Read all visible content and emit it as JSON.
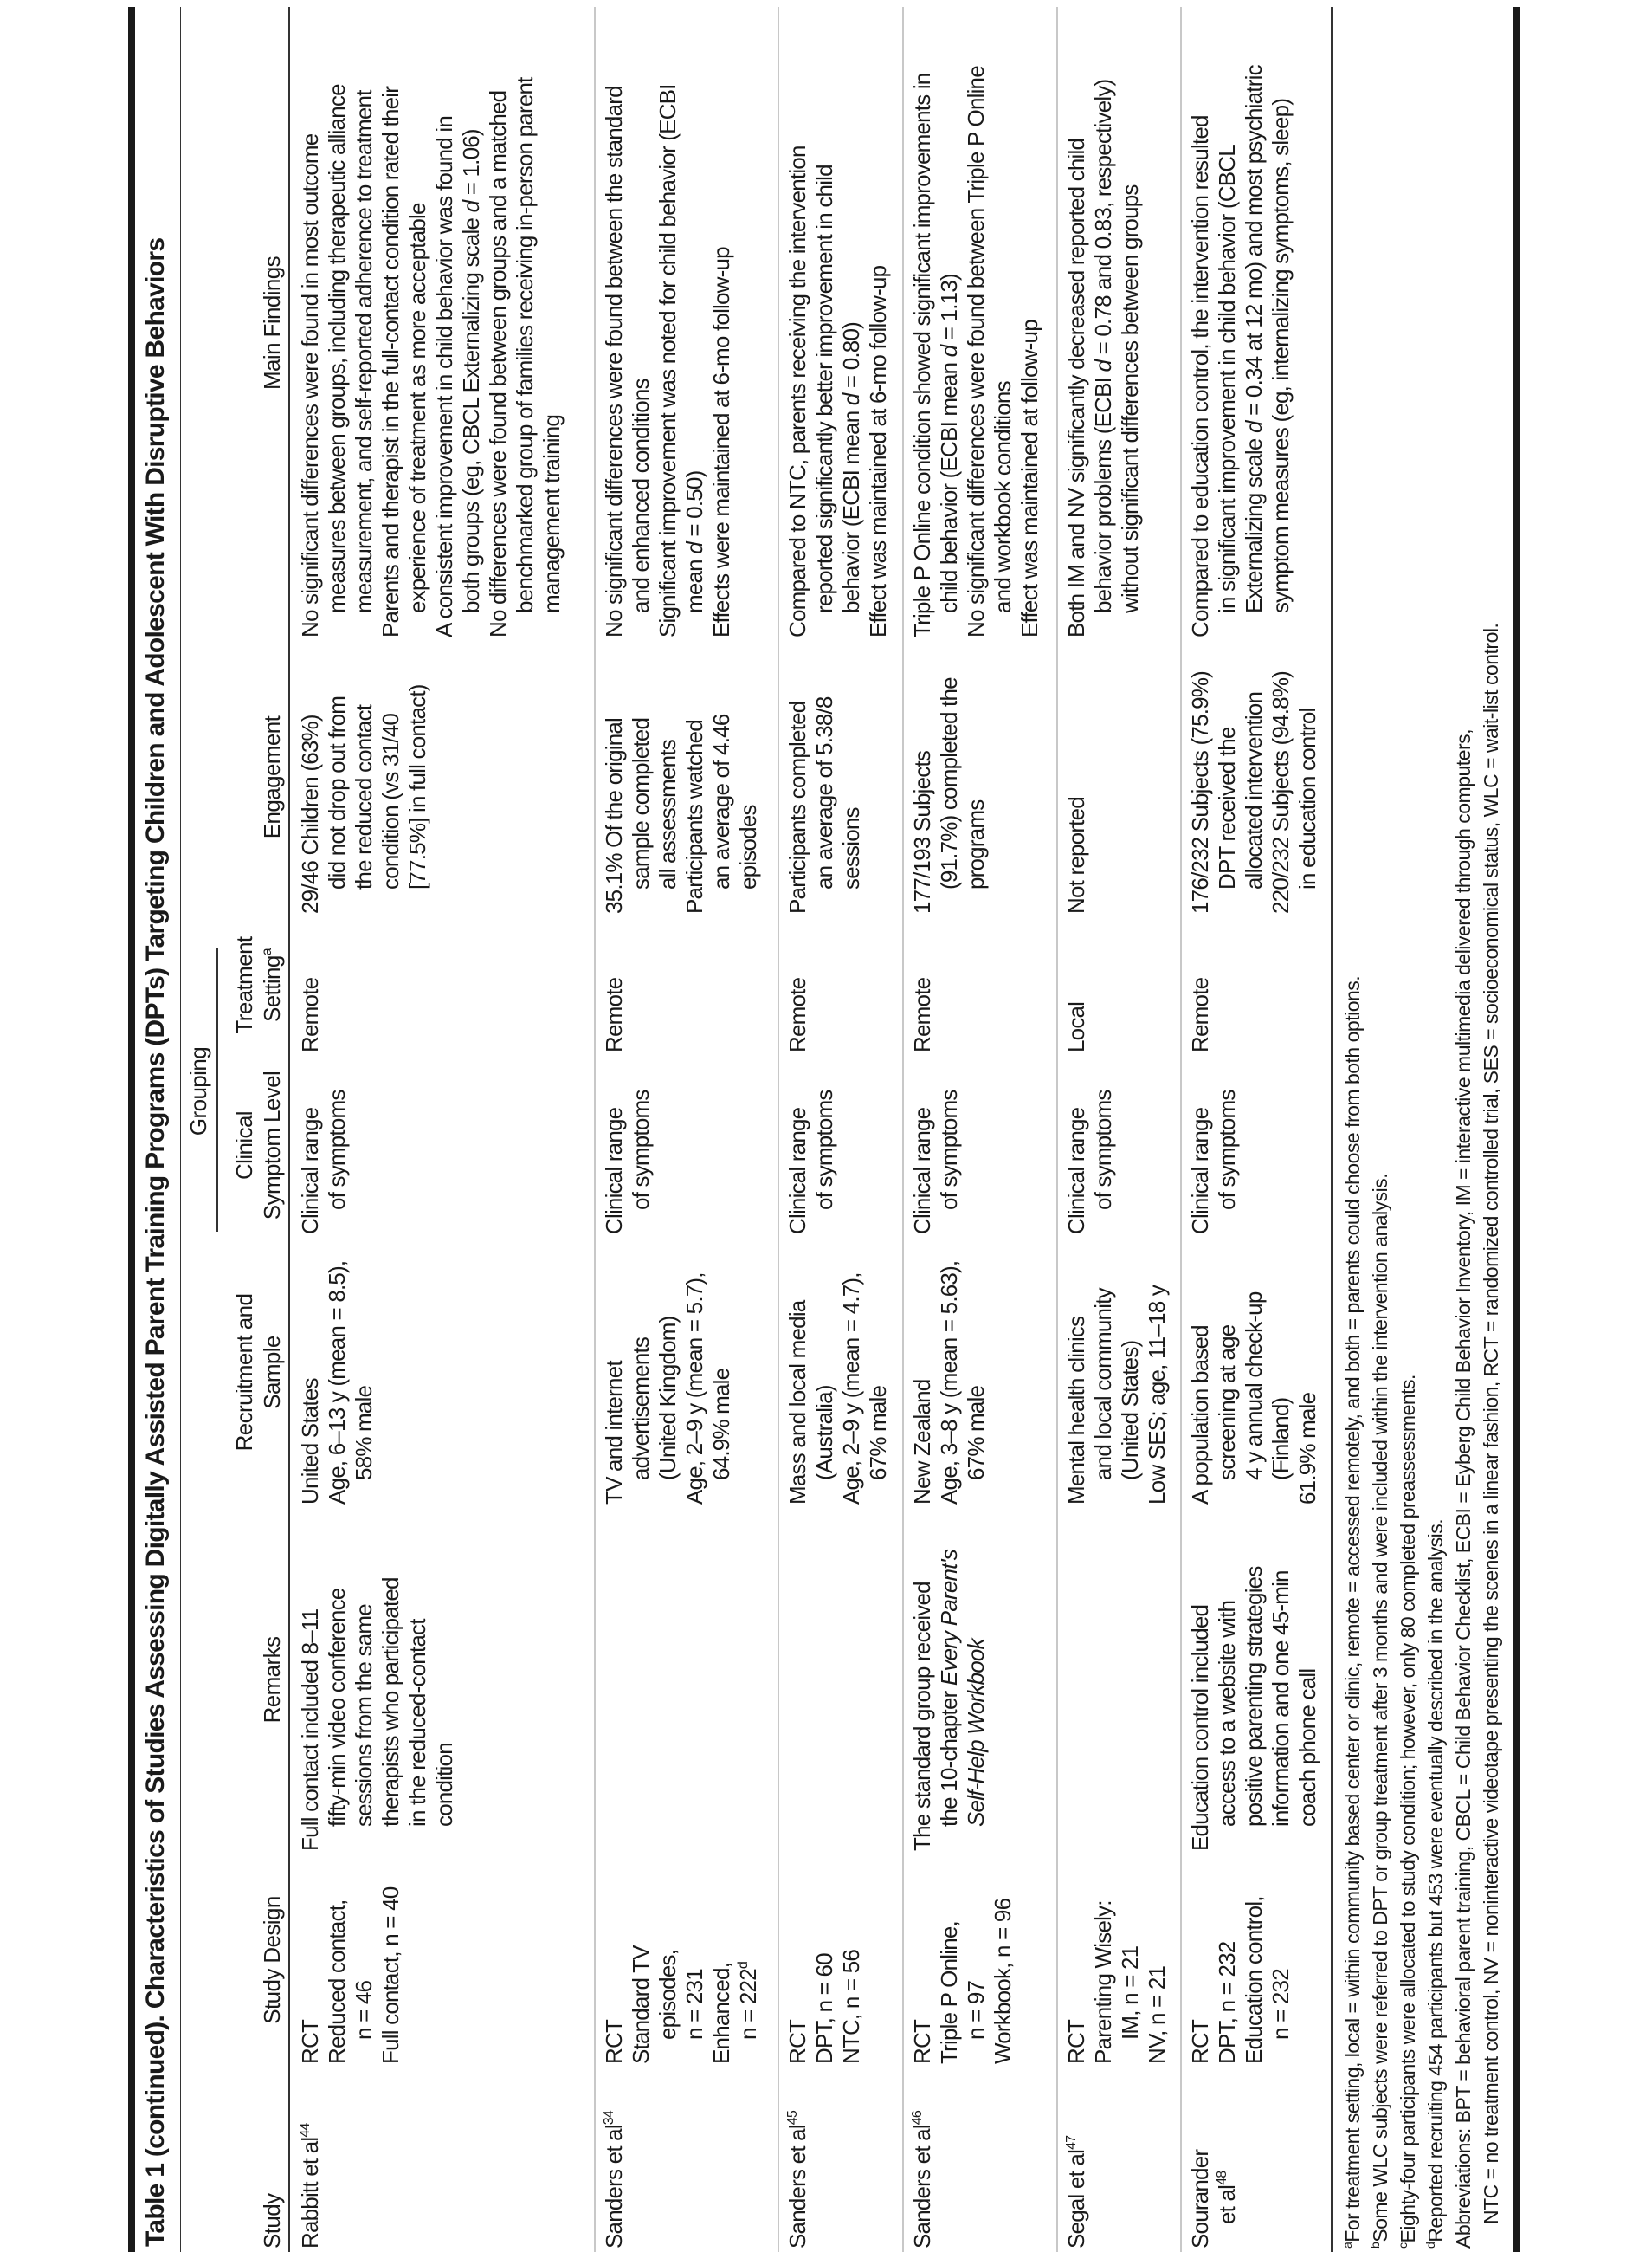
{
  "title": "Table 1 (continued). Characteristics of Studies Assessing Digitally Assisted Parent Training Programs (DPTs) Targeting Children and Adolescent With Disruptive Behaviors",
  "header": {
    "grouping": "Grouping",
    "columns": [
      {
        "key": "study",
        "lines": [
          [
            "Study"
          ]
        ]
      },
      {
        "key": "design",
        "lines": [
          [
            "Study Design"
          ]
        ]
      },
      {
        "key": "remarks",
        "lines": [
          [
            "Remarks"
          ]
        ]
      },
      {
        "key": "recruit",
        "lines": [
          [
            "Recruitment and"
          ],
          [
            "Sample"
          ]
        ]
      },
      {
        "key": "clinical",
        "lines": [
          [
            "Clinical"
          ],
          [
            "Symptom Level"
          ]
        ]
      },
      {
        "key": "setting",
        "lines": [
          [
            "Treatment"
          ],
          [
            "Setting",
            {
              "t": "a",
              "s": "sup"
            }
          ]
        ]
      },
      {
        "key": "engagement",
        "lines": [
          [
            "Engagement"
          ]
        ]
      },
      {
        "key": "main",
        "lines": [
          [
            "Main Findings"
          ]
        ]
      }
    ]
  },
  "rows": [
    {
      "study": [
        [
          [
            "Rabbitt et al",
            {
              "t": "44",
              "s": "sup"
            }
          ]
        ]
      ],
      "design": [
        [
          "RCT"
        ],
        [
          "Reduced contact,",
          "n = 46"
        ],
        [
          "Full contact, n = 40"
        ]
      ],
      "remarks": [
        [
          "Full contact included 8–11",
          "fifty-min video conference",
          "sessions from the same",
          "therapists who participated",
          "in the reduced-contact",
          "condition"
        ]
      ],
      "recruit": [
        [
          "United States"
        ],
        [
          "Age, 6–13 y (mean = 8.5),",
          "58% male"
        ]
      ],
      "clinical": [
        [
          "Clinical range",
          "of symptoms"
        ]
      ],
      "setting": [
        [
          "Remote"
        ]
      ],
      "engagement": [
        [
          "29/46 Children (63%)",
          "did not drop out from",
          "the reduced contact",
          "condition (vs 31/40",
          "[77.5%] in full contact)"
        ]
      ],
      "main": [
        [
          "No significant differences were found in most outcome",
          "measures between groups, including therapeutic alliance",
          "measurement, and self-reported adherence to treatment"
        ],
        [
          "Parents and therapist in the full-contact condition rated their",
          "experience of treatment as more acceptable"
        ],
        [
          "A consistent improvement in child behavior was found in",
          [
            "both groups (eg, CBCL Externalizing scale ",
            {
              "t": "d",
              "s": "i"
            },
            " = 1.06)"
          ]
        ],
        [
          "No differences were found between groups and a matched",
          "benchmarked group of families receiving in-person parent",
          "management training"
        ]
      ]
    },
    {
      "study": [
        [
          [
            "Sanders et al",
            {
              "t": "34",
              "s": "sup"
            }
          ]
        ]
      ],
      "design": [
        [
          "RCT"
        ],
        [
          "Standard TV",
          "episodes,",
          "n = 231"
        ],
        [
          "Enhanced,",
          [
            "n = 222",
            {
              "t": "d",
              "s": "sup"
            }
          ]
        ]
      ],
      "remarks": [],
      "recruit": [
        [
          "TV and internet",
          "advertisements",
          "(United Kingdom)"
        ],
        [
          "Age, 2–9 y (mean = 5.7),",
          "64.9% male"
        ]
      ],
      "clinical": [
        [
          "Clinical range",
          "of symptoms"
        ]
      ],
      "setting": [
        [
          "Remote"
        ]
      ],
      "engagement": [
        [
          "35.1% Of the original",
          "sample completed",
          "all assessments"
        ],
        [
          "Participants watched",
          "an average of 4.46",
          "episodes"
        ]
      ],
      "main": [
        [
          "No significant differences were found between the standard",
          "and enhanced conditions"
        ],
        [
          "Significant improvement was noted for child behavior (ECBI",
          [
            "mean ",
            {
              "t": "d",
              "s": "i"
            },
            " = 0.50)"
          ]
        ],
        [
          "Effects were maintained at 6-mo follow-up"
        ]
      ]
    },
    {
      "study": [
        [
          [
            "Sanders et al",
            {
              "t": "45",
              "s": "sup"
            }
          ]
        ]
      ],
      "design": [
        [
          "RCT"
        ],
        [
          "DPT, n = 60"
        ],
        [
          "NTC, n = 56"
        ]
      ],
      "remarks": [],
      "recruit": [
        [
          "Mass and local media",
          "(Australia)"
        ],
        [
          "Age, 2–9 y (mean = 4.7),",
          "67% male"
        ]
      ],
      "clinical": [
        [
          "Clinical range",
          "of symptoms"
        ]
      ],
      "setting": [
        [
          "Remote"
        ]
      ],
      "engagement": [
        [
          "Participants completed",
          "an average of 5.38/8",
          "sessions"
        ]
      ],
      "main": [
        [
          "Compared to NTC, parents receiving the intervention",
          "reported significantly better improvement in child",
          [
            "behavior (ECBI mean ",
            {
              "t": "d",
              "s": "i"
            },
            " = 0.80)"
          ]
        ],
        [
          "Effect was maintained at 6-mo follow-up"
        ]
      ]
    },
    {
      "study": [
        [
          [
            "Sanders et al",
            {
              "t": "46",
              "s": "sup"
            }
          ]
        ]
      ],
      "design": [
        [
          "RCT"
        ],
        [
          "Triple P Online,",
          "n = 97"
        ],
        [
          "Workbook, n = 96"
        ]
      ],
      "remarks": [
        [
          "The standard group received",
          [
            "the 10-chapter ",
            {
              "t": "Every Parent's",
              "s": "i"
            }
          ],
          [
            {
              "t": "Self-Help Workbook",
              "s": "i"
            }
          ]
        ]
      ],
      "recruit": [
        [
          "New Zealand"
        ],
        [
          "Age, 3–8 y (mean = 5.63),",
          "67% male"
        ]
      ],
      "clinical": [
        [
          "Clinical range",
          "of symptoms"
        ]
      ],
      "setting": [
        [
          "Remote"
        ]
      ],
      "engagement": [
        [
          "177/193 Subjects",
          "(91.7%) completed the",
          "programs"
        ]
      ],
      "main": [
        [
          "Triple P Online condition showed significant improvements in",
          [
            "child behavior (ECBI mean ",
            {
              "t": "d",
              "s": "i"
            },
            " = 1.13)"
          ]
        ],
        [
          "No significant differences were found between Triple P Online",
          "and workbook conditions"
        ],
        [
          "Effect was maintained at follow-up"
        ]
      ]
    },
    {
      "study": [
        [
          [
            "Segal et al",
            {
              "t": "47",
              "s": "sup"
            }
          ]
        ]
      ],
      "design": [
        [
          "RCT"
        ],
        [
          "Parenting Wisely:",
          "IM, n = 21"
        ],
        [
          "NV, n = 21"
        ]
      ],
      "remarks": [],
      "recruit": [
        [
          "Mental health clinics",
          "and local community",
          "(United States)"
        ],
        [
          "Low SES; age, 11–18 y"
        ]
      ],
      "clinical": [
        [
          "Clinical range",
          "of symptoms"
        ]
      ],
      "setting": [
        [
          "Local"
        ]
      ],
      "engagement": [
        [
          "Not reported"
        ]
      ],
      "main": [
        [
          "Both IM and NV significantly decreased reported child",
          [
            "behavior problems (ECBI ",
            {
              "t": "d",
              "s": "i"
            },
            " = 0.78 and 0.83, respectively)"
          ],
          "without significant differences between groups"
        ]
      ]
    },
    {
      "study": [
        [
          "Sourander",
          [
            "et al",
            {
              "t": "48",
              "s": "sup"
            }
          ]
        ]
      ],
      "design": [
        [
          "RCT"
        ],
        [
          "DPT, n = 232"
        ],
        [
          "Education control,",
          "n = 232"
        ]
      ],
      "remarks": [
        [
          "Education control included",
          "access to a website with",
          "positive parenting strategies",
          "information and one 45-min",
          "coach phone call"
        ]
      ],
      "recruit": [
        [
          "A population based",
          "screening at age",
          "4 y annual check-up",
          "(Finland)"
        ],
        [
          "61.9% male"
        ]
      ],
      "clinical": [
        [
          "Clinical range",
          "of symptoms"
        ]
      ],
      "setting": [
        [
          "Remote"
        ]
      ],
      "engagement": [
        [
          "176/232 Subjects (75.9%)",
          "DPT received the",
          "allocated intervention"
        ],
        [
          "220/232 Subjects (94.8%)",
          "in education control"
        ]
      ],
      "main": [
        [
          "Compared to education control, the intervention resulted",
          "in significant improvement in child behavior (CBCL",
          [
            "Externalizing scale ",
            {
              "t": "d",
              "s": "i"
            },
            " = 0.34 at 12 mo) and most psychiatric"
          ],
          "symptom measures (eg, internalizing symptoms, sleep)"
        ]
      ]
    }
  ],
  "footnotes": [
    [
      [
        {
          "t": "a",
          "s": "sup"
        },
        "For treatment setting, local = within community based center or clinic, remote = accessed remotely, and both = parents could choose from both options."
      ]
    ],
    [
      [
        {
          "t": "b",
          "s": "sup"
        },
        "Some WLC subjects were referred to DPT or group treatment after 3 months and were included within the intervention analysis."
      ]
    ],
    [
      [
        {
          "t": "c",
          "s": "sup"
        },
        "Eighty-four participants were allocated to study condition; however, only 80 completed preassessments."
      ]
    ],
    [
      [
        {
          "t": "d",
          "s": "sup"
        },
        "Reported recruiting 454 participants but 453 were eventually described in the analysis."
      ]
    ],
    [
      "Abbreviations: BPT = behavioral parent training, CBCL = Child Behavior Checklist, ECBI = Eyberg Child Behavior Inventory, IM = interactive multimedia delivered through computers,",
      "NTC = no treatment control, NV = noninteractive videotape presenting the scenes in a linear fashion, RCT = randomized controlled trial, SES = socioeconomical status, WLC = wait-list control."
    ]
  ]
}
